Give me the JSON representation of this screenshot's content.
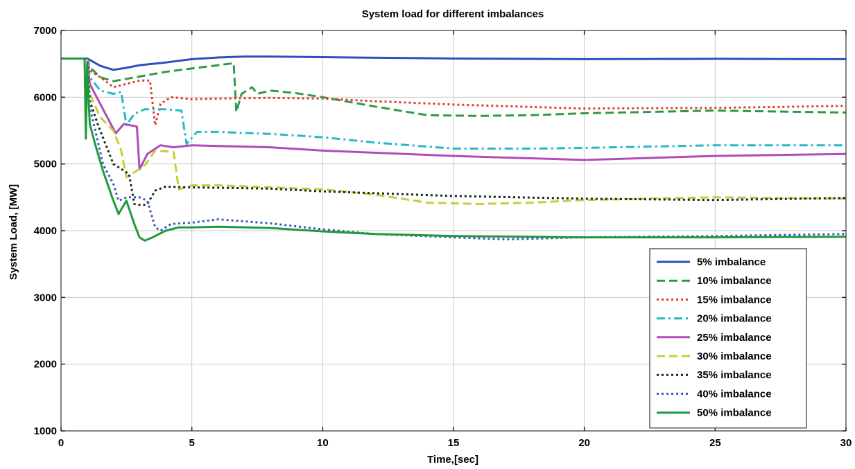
{
  "chart_data": {
    "type": "line",
    "title": "System load for different imbalances",
    "xlabel": "Time,[sec]",
    "ylabel": "System Load, [MW]",
    "xlim": [
      0,
      30
    ],
    "ylim": [
      1000,
      7000
    ],
    "xticks": [
      0,
      5,
      10,
      15,
      20,
      25,
      30
    ],
    "yticks": [
      1000,
      2000,
      3000,
      4000,
      5000,
      6000,
      7000
    ],
    "xtick_labels": [
      "0",
      "5",
      "10",
      "15",
      "20",
      "25",
      "30"
    ],
    "ytick_labels": [
      "1000",
      "2000",
      "3000",
      "4000",
      "5000",
      "6000",
      "7000"
    ],
    "grid": true,
    "legend_position": "lower-right",
    "series": [
      {
        "name": "5% imbalance",
        "color": "#2b4fbf",
        "dash": "solid",
        "x": [
          0,
          1,
          1.1,
          1.5,
          2.0,
          2.5,
          3,
          4,
          5,
          6,
          7,
          8,
          10,
          15,
          20,
          25,
          30
        ],
        "y": [
          6580,
          6580,
          6560,
          6470,
          6410,
          6440,
          6480,
          6520,
          6570,
          6595,
          6610,
          6610,
          6600,
          6580,
          6570,
          6575,
          6570
        ]
      },
      {
        "name": "10% imbalance",
        "color": "#2e9a46",
        "dash": "dash",
        "x": [
          0,
          1,
          1.1,
          1.5,
          2.0,
          3,
          4,
          5,
          6,
          6.6,
          6.7,
          6.9,
          7.3,
          7.5,
          8,
          9,
          10,
          12,
          14,
          16,
          18,
          20,
          25,
          30
        ],
        "y": [
          6580,
          6580,
          6450,
          6300,
          6240,
          6310,
          6380,
          6430,
          6480,
          6510,
          5780,
          6050,
          6150,
          6050,
          6100,
          6060,
          6000,
          5860,
          5730,
          5720,
          5730,
          5760,
          5800,
          5770
        ]
      },
      {
        "name": "15% imbalance",
        "color": "#e03a2e",
        "dash": "dot",
        "x": [
          0,
          1,
          1.1,
          1.5,
          2.0,
          2.5,
          3.0,
          3.4,
          3.6,
          3.8,
          4.2,
          5,
          6,
          8,
          10,
          12,
          15,
          20,
          25,
          30
        ],
        "y": [
          6580,
          6580,
          6400,
          6300,
          6150,
          6200,
          6250,
          6250,
          5580,
          5900,
          6000,
          5970,
          5980,
          5990,
          5980,
          5940,
          5890,
          5830,
          5840,
          5870
        ]
      },
      {
        "name": "20% imbalance",
        "color": "#25b8c9",
        "dash": "dashdot",
        "x": [
          0,
          1,
          1.1,
          1.5,
          2.0,
          2.3,
          2.5,
          2.8,
          3.2,
          4.0,
          4.6,
          4.8,
          5.2,
          6,
          8,
          10,
          12,
          15,
          18,
          20,
          25,
          30
        ],
        "y": [
          6580,
          6580,
          6300,
          6100,
          6050,
          6080,
          5580,
          5750,
          5820,
          5820,
          5800,
          5300,
          5480,
          5480,
          5450,
          5400,
          5320,
          5230,
          5230,
          5240,
          5280,
          5280
        ]
      },
      {
        "name": "25% imbalance",
        "color": "#b04bb8",
        "dash": "solid",
        "x": [
          0,
          1,
          1.1,
          1.5,
          1.9,
          2.1,
          2.4,
          2.9,
          3.0,
          3.3,
          3.8,
          4.3,
          5,
          6,
          8,
          10,
          15,
          20,
          25,
          30
        ],
        "y": [
          6580,
          6580,
          6200,
          5900,
          5600,
          5460,
          5600,
          5560,
          4920,
          5150,
          5280,
          5250,
          5280,
          5270,
          5250,
          5200,
          5120,
          5060,
          5120,
          5150
        ]
      },
      {
        "name": "30% imbalance",
        "color": "#c8cc3a",
        "dash": "dash",
        "x": [
          0,
          1,
          1.1,
          1.5,
          2.0,
          2.3,
          2.5,
          2.9,
          3.2,
          3.6,
          4.3,
          4.5,
          5,
          6,
          8,
          10,
          12,
          14,
          16,
          18,
          20,
          25,
          30
        ],
        "y": [
          6580,
          6580,
          6050,
          5700,
          5500,
          5200,
          4800,
          4900,
          4980,
          5200,
          5180,
          4620,
          4680,
          4680,
          4650,
          4620,
          4540,
          4420,
          4400,
          4420,
          4460,
          4500,
          4480
        ]
      },
      {
        "name": "35% imbalance",
        "color": "#0e2a1b",
        "dash": "dot",
        "x": [
          0,
          1,
          1.1,
          1.4,
          1.7,
          2.0,
          2.4,
          2.6,
          2.8,
          3.1,
          3.3,
          3.6,
          4.0,
          5,
          8,
          10,
          15,
          20,
          25,
          30
        ],
        "y": [
          6580,
          6580,
          5950,
          5600,
          5300,
          5000,
          4900,
          4850,
          4400,
          4380,
          4400,
          4600,
          4660,
          4650,
          4630,
          4590,
          4520,
          4480,
          4460,
          4490
        ]
      },
      {
        "name": "40% imbalance",
        "color": "#3b55c8",
        "dash": "dot",
        "x": [
          0,
          1,
          1.1,
          1.4,
          1.6,
          2.0,
          2.2,
          2.5,
          3.0,
          3.3,
          3.6,
          3.8,
          4.2,
          5,
          6,
          8,
          10,
          12,
          15,
          17,
          20,
          25,
          30
        ],
        "y": [
          6580,
          6580,
          5850,
          5350,
          5000,
          4700,
          4450,
          4500,
          4500,
          4450,
          4050,
          4000,
          4100,
          4120,
          4170,
          4110,
          4020,
          3950,
          3900,
          3870,
          3900,
          3920,
          3950
        ]
      },
      {
        "name": "50% imbalance",
        "color": "#1e9a3a",
        "dash": "solid",
        "x": [
          0,
          0.9,
          0.95,
          1.0,
          1.05,
          1.1,
          1.3,
          1.6,
          2.0,
          2.2,
          2.5,
          2.8,
          3.0,
          3.2,
          3.5,
          4.0,
          4.5,
          5,
          6,
          8,
          10,
          12,
          15,
          20,
          25,
          30
        ],
        "y": [
          6580,
          6580,
          5380,
          6500,
          6000,
          5600,
          5300,
          4900,
          4450,
          4250,
          4450,
          4100,
          3900,
          3850,
          3900,
          4000,
          4050,
          4050,
          4060,
          4040,
          3990,
          3950,
          3920,
          3900,
          3900,
          3910
        ]
      }
    ]
  }
}
